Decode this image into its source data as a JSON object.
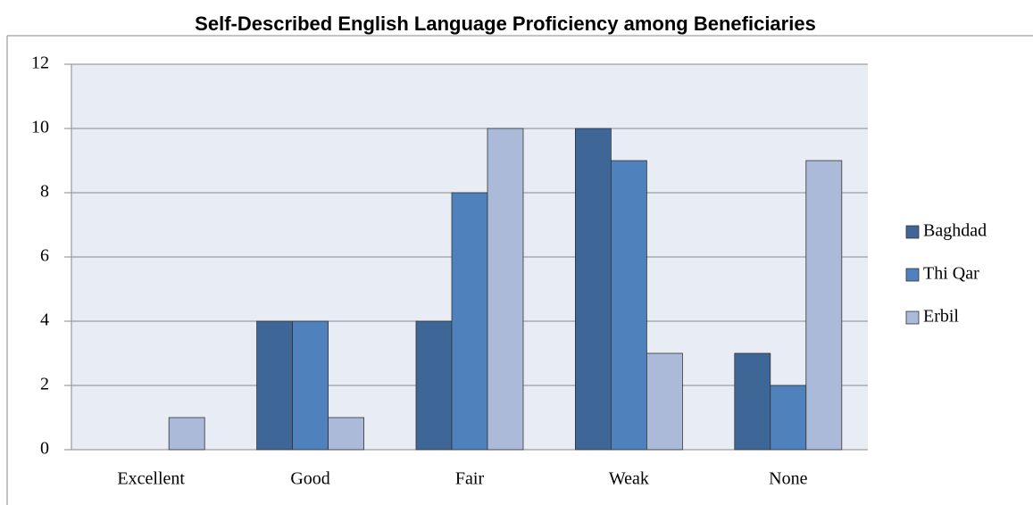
{
  "chart_data": {
    "type": "bar",
    "title": "Self-Described English Language Proficiency among Beneficiaries",
    "categories": [
      "Excellent",
      "Good",
      "Fair",
      "Weak",
      "None"
    ],
    "series": [
      {
        "name": "Baghdad",
        "color": "#3e6798",
        "values": [
          0,
          4,
          4,
          10,
          3
        ]
      },
      {
        "name": "Thi Qar",
        "color": "#4f81bd",
        "values": [
          0,
          4,
          8,
          9,
          2
        ]
      },
      {
        "name": "Erbil",
        "color": "#aabad8",
        "values": [
          1,
          1,
          10,
          3,
          9
        ]
      }
    ],
    "ylim": [
      0,
      12
    ],
    "yticks": [
      0,
      2,
      4,
      6,
      8,
      10,
      12
    ],
    "grid": true,
    "legend": "right"
  }
}
